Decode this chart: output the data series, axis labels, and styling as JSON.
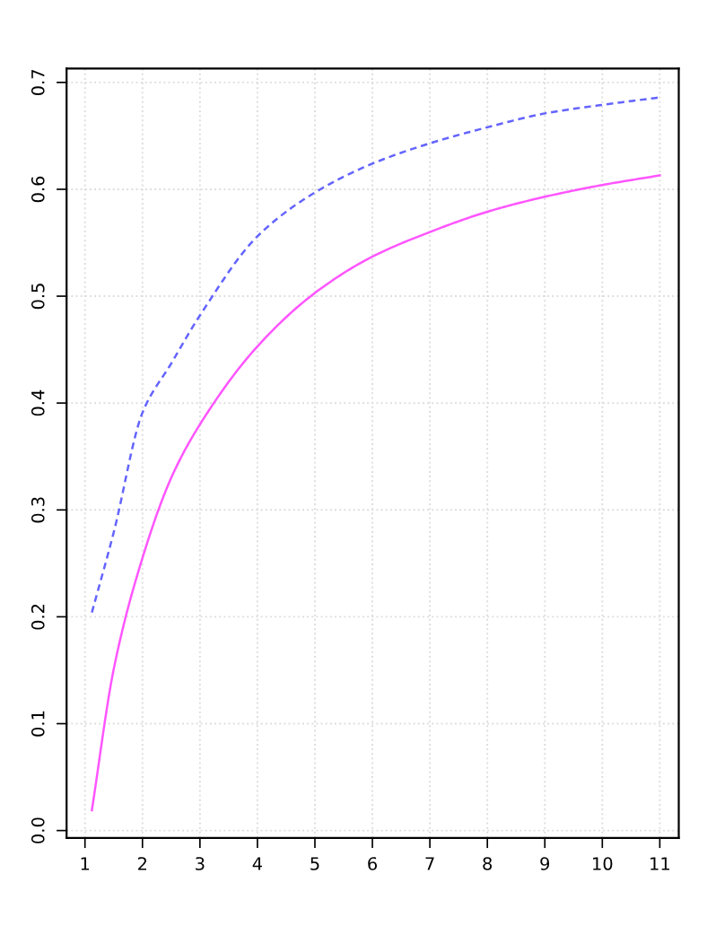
{
  "chart_data": {
    "type": "line",
    "xlim": [
      0.68,
      11.33
    ],
    "ylim": [
      -0.007,
      0.713
    ],
    "xticks": [
      1,
      2,
      3,
      4,
      5,
      6,
      7,
      8,
      9,
      10,
      11
    ],
    "yticks": [
      {
        "value": 0,
        "label": "0.0"
      },
      0.1,
      0.2,
      0.3,
      0.4,
      0.5,
      0.6,
      0.7
    ],
    "grid": true,
    "marker": "none",
    "series": [
      {
        "color": "#6464ff",
        "line_style": "dashed",
        "x": [
          1.12,
          1.5,
          2,
          2.5,
          3,
          4,
          5,
          6,
          7,
          8,
          9,
          10,
          11
        ],
        "values": [
          0.204,
          0.279,
          0.391,
          0.437,
          0.482,
          0.556,
          0.597,
          0.624,
          0.643,
          0.658,
          0.671,
          0.679,
          0.686
        ]
      },
      {
        "color": "#ff55ff",
        "line_style": "solid",
        "x": [
          1.12,
          1.5,
          2,
          2.5,
          3,
          4,
          5,
          6,
          7,
          8,
          9,
          10,
          11
        ],
        "values": [
          0.019,
          0.151,
          0.255,
          0.33,
          0.38,
          0.453,
          0.503,
          0.537,
          0.56,
          0.579,
          0.593,
          0.604,
          0.613
        ]
      }
    ]
  }
}
